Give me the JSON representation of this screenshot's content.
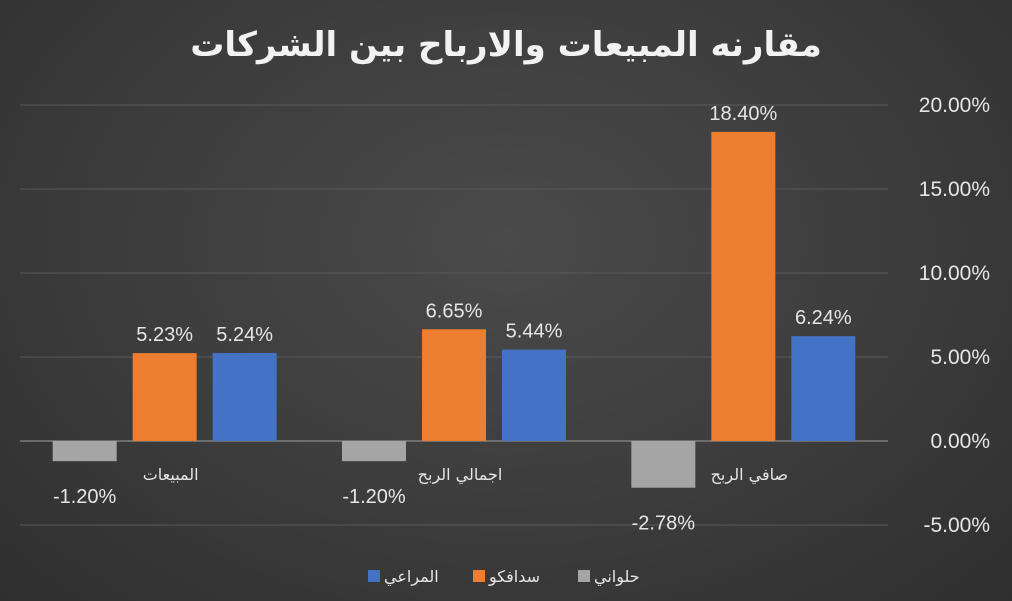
{
  "chart_data": {
    "type": "bar",
    "title": "مقارنه المبيعات والارباح بين الشركات",
    "categories": [
      "المبيعات",
      "اجمالي الربح",
      "صافي الربح"
    ],
    "series": [
      {
        "name": "حلواني",
        "values": [
          -1.2,
          -1.2,
          -2.78
        ],
        "labels": [
          "-1.20%",
          "-1.20%",
          "-2.78%"
        ],
        "color": "#a5a5a5"
      },
      {
        "name": "سدافكو",
        "values": [
          5.23,
          6.65,
          18.4
        ],
        "labels": [
          "5.23%",
          "6.65%",
          "18.40%"
        ],
        "color": "#ed7d31"
      },
      {
        "name": "المراعي",
        "values": [
          5.24,
          5.44,
          6.24
        ],
        "labels": [
          "5.24%",
          "5.44%",
          "6.24%"
        ],
        "color": "#4472c4"
      }
    ],
    "y_ticks": [
      20,
      15,
      10,
      5,
      0,
      -5
    ],
    "y_tick_labels": [
      "20.00%",
      "15.00%",
      "10.00%",
      "5.00%",
      "0.00%",
      "-5.00%"
    ],
    "ylim": [
      -5,
      20
    ],
    "y_axis_side": "right",
    "grid": true,
    "legend": "bottom",
    "xlabel": "",
    "ylabel": ""
  }
}
